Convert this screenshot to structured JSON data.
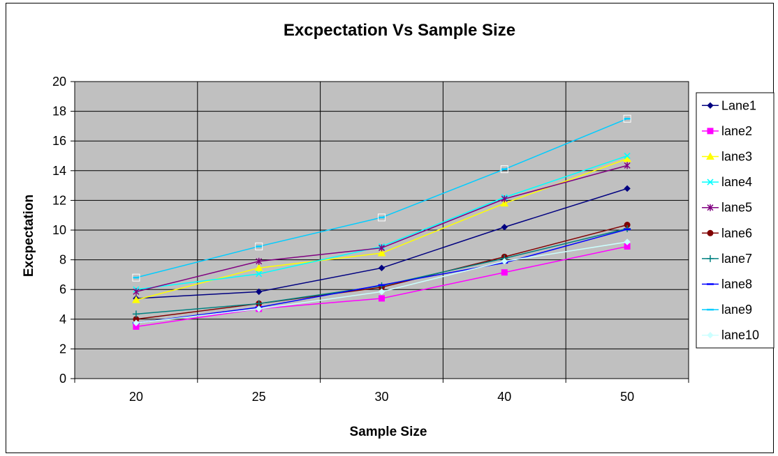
{
  "chart_data": {
    "type": "line",
    "title": "Excpectation Vs Sample Size",
    "xlabel": "Sample Size",
    "ylabel": "Excpectation",
    "categories": [
      "20",
      "25",
      "30",
      "40",
      "50"
    ],
    "ylim": [
      0,
      20
    ],
    "yticks": [
      0,
      2,
      4,
      6,
      8,
      10,
      12,
      14,
      16,
      18,
      20
    ],
    "grid": true,
    "legend_position": "right",
    "plot_background": "#c0c0c0",
    "series": [
      {
        "name": "Lane1",
        "color": "#000080",
        "marker": "diamond",
        "values": [
          5.4,
          5.85,
          7.45,
          10.2,
          12.8
        ]
      },
      {
        "name": "lane2",
        "color": "#ff00ff",
        "marker": "square",
        "values": [
          3.5,
          4.7,
          5.4,
          7.15,
          8.9
        ]
      },
      {
        "name": "lane3",
        "color": "#ffff00",
        "marker": "triangle",
        "values": [
          5.3,
          7.45,
          8.45,
          11.8,
          14.8
        ]
      },
      {
        "name": "lane4",
        "color": "#00ffff",
        "marker": "x",
        "values": [
          6.0,
          7.05,
          8.9,
          12.2,
          15.0
        ]
      },
      {
        "name": "lane5",
        "color": "#800080",
        "marker": "star",
        "values": [
          5.85,
          7.9,
          8.8,
          12.1,
          14.35
        ]
      },
      {
        "name": "lane6",
        "color": "#800000",
        "marker": "circle",
        "values": [
          4.0,
          5.05,
          6.15,
          8.2,
          10.35
        ]
      },
      {
        "name": "lane7",
        "color": "#008080",
        "marker": "plus",
        "values": [
          4.35,
          5.05,
          6.25,
          8.1,
          10.1
        ]
      },
      {
        "name": "lane8",
        "color": "#0000ff",
        "marker": "dash",
        "values": [
          3.75,
          4.8,
          6.3,
          7.8,
          10.05
        ]
      },
      {
        "name": "lane9",
        "color": "#00ccff",
        "marker": "dash",
        "values": [
          6.8,
          8.9,
          10.85,
          14.1,
          17.5
        ]
      },
      {
        "name": "lane10",
        "color": "#ccffff",
        "marker": "diamond",
        "values": [
          3.75,
          4.7,
          5.85,
          7.9,
          9.2
        ]
      }
    ]
  }
}
